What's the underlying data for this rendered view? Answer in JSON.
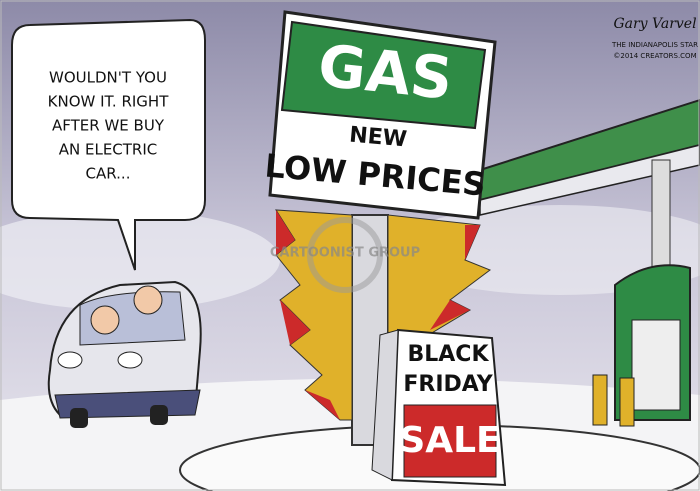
{
  "speech_bubble": {
    "lines": [
      "WOULDN'T YOU",
      "KNOW IT. RIGHT",
      "AFTER WE BUY",
      "AN ELECTRIC",
      "CAR..."
    ]
  },
  "gas_sign": {
    "title": "GAS",
    "line1": "NEW",
    "line2": "LOW PRICES"
  },
  "sale_sign": {
    "line1": "BLACK",
    "line2": "FRIDAY",
    "line3": "SALE"
  },
  "signature": {
    "name": "Gary Varvel",
    "credit1": "THE INDIANAPOLIS STAR",
    "credit2": "©2014 CREATORS.COM"
  },
  "watermark": "CARTOONIST GROUP"
}
